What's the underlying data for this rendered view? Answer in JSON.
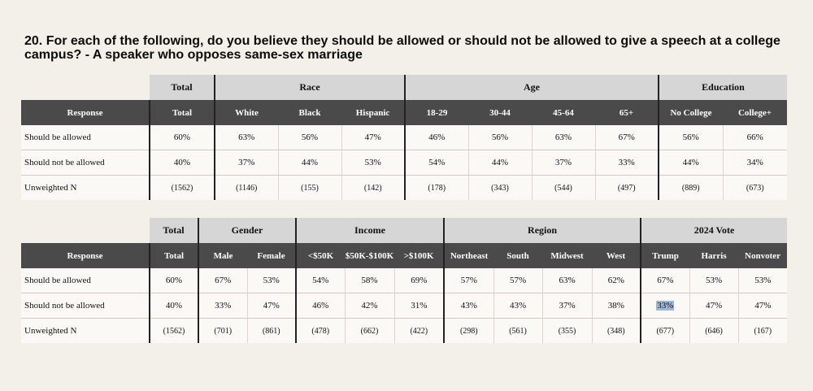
{
  "title": "20. For each of the following, do you believe they should be allowed or should not be allowed to give a speech at a college campus? - A speaker who opposes same-sex marriage",
  "table1": {
    "groups": {
      "total": "Total",
      "race": "Race",
      "age": "Age",
      "education": "Education"
    },
    "headers": [
      "Response",
      "Total",
      "White",
      "Black",
      "Hispanic",
      "18-29",
      "30-44",
      "45-64",
      "65+",
      "No College",
      "College+"
    ],
    "rows": [
      [
        "Should be allowed",
        "60%",
        "63%",
        "56%",
        "47%",
        "46%",
        "56%",
        "63%",
        "67%",
        "56%",
        "66%"
      ],
      [
        "Should not be allowed",
        "40%",
        "37%",
        "44%",
        "53%",
        "54%",
        "44%",
        "37%",
        "33%",
        "44%",
        "34%"
      ],
      [
        "Unweighted N",
        "(1562)",
        "(1146)",
        "(155)",
        "(142)",
        "(178)",
        "(343)",
        "(544)",
        "(497)",
        "(889)",
        "(673)"
      ]
    ]
  },
  "table2": {
    "groups": {
      "total": "Total",
      "gender": "Gender",
      "income": "Income",
      "region": "Region",
      "vote": "2024 Vote"
    },
    "headers": [
      "Response",
      "Total",
      "Male",
      "Female",
      "<$50K",
      "$50K-$100K",
      ">$100K",
      "Northeast",
      "South",
      "Midwest",
      "West",
      "Trump",
      "Harris",
      "Nonvoter"
    ],
    "rows": [
      [
        "Should be allowed",
        "60%",
        "67%",
        "53%",
        "54%",
        "58%",
        "69%",
        "57%",
        "57%",
        "63%",
        "62%",
        "67%",
        "53%",
        "53%"
      ],
      [
        "Should not be allowed",
        "40%",
        "33%",
        "47%",
        "46%",
        "42%",
        "31%",
        "43%",
        "43%",
        "37%",
        "38%",
        "33%",
        "47%",
        "47%"
      ],
      [
        "Unweighted N",
        "(1562)",
        "(701)",
        "(861)",
        "(478)",
        "(662)",
        "(422)",
        "(298)",
        "(561)",
        "(355)",
        "(348)",
        "(677)",
        "(646)",
        "(167)"
      ]
    ]
  }
}
